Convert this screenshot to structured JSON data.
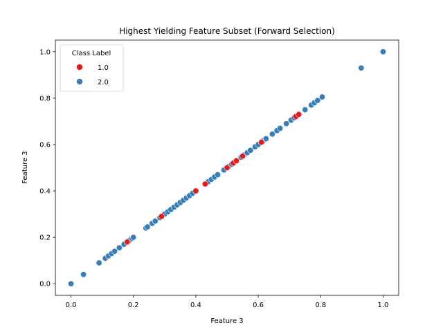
{
  "chart_data": {
    "type": "scatter",
    "title": "Highest Yielding Feature Subset (Forward Selection)",
    "xlabel": "Feature 3",
    "ylabel": "Feature 3",
    "xlim": [
      -0.05,
      1.05
    ],
    "ylim": [
      -0.05,
      1.05
    ],
    "xticks": [
      "0.0",
      "0.2",
      "0.4",
      "0.6",
      "0.8",
      "1.0"
    ],
    "yticks": [
      "0.0",
      "0.2",
      "0.4",
      "0.6",
      "0.8",
      "1.0"
    ],
    "grid": false,
    "legend": {
      "title": "Class Label",
      "placement": "top-left"
    },
    "series": [
      {
        "name": "1.0",
        "color": "#e41a1c",
        "x": [
          0.18,
          0.29,
          0.4,
          0.43,
          0.5,
          0.52,
          0.53,
          0.55,
          0.61,
          0.72,
          0.73
        ],
        "y": [
          0.18,
          0.29,
          0.4,
          0.43,
          0.5,
          0.52,
          0.53,
          0.55,
          0.61,
          0.72,
          0.73
        ]
      },
      {
        "name": "2.0",
        "color": "#377eb8",
        "x": [
          0.0,
          0.04,
          0.09,
          0.11,
          0.12,
          0.13,
          0.14,
          0.155,
          0.17,
          0.185,
          0.195,
          0.2,
          0.24,
          0.245,
          0.26,
          0.27,
          0.285,
          0.3,
          0.31,
          0.32,
          0.33,
          0.34,
          0.35,
          0.36,
          0.37,
          0.38,
          0.39,
          0.43,
          0.44,
          0.45,
          0.46,
          0.47,
          0.49,
          0.505,
          0.515,
          0.525,
          0.545,
          0.555,
          0.565,
          0.575,
          0.59,
          0.6,
          0.615,
          0.625,
          0.645,
          0.66,
          0.67,
          0.69,
          0.705,
          0.715,
          0.75,
          0.77,
          0.78,
          0.79,
          0.805,
          0.93,
          1.0
        ],
        "y": [
          0.0,
          0.04,
          0.09,
          0.11,
          0.12,
          0.13,
          0.14,
          0.155,
          0.17,
          0.185,
          0.195,
          0.2,
          0.24,
          0.245,
          0.26,
          0.27,
          0.285,
          0.3,
          0.31,
          0.32,
          0.33,
          0.34,
          0.35,
          0.36,
          0.37,
          0.38,
          0.39,
          0.43,
          0.44,
          0.45,
          0.46,
          0.47,
          0.49,
          0.505,
          0.515,
          0.525,
          0.545,
          0.555,
          0.565,
          0.575,
          0.59,
          0.6,
          0.615,
          0.625,
          0.645,
          0.66,
          0.67,
          0.69,
          0.705,
          0.715,
          0.75,
          0.77,
          0.78,
          0.79,
          0.805,
          0.93,
          1.0
        ]
      }
    ]
  }
}
